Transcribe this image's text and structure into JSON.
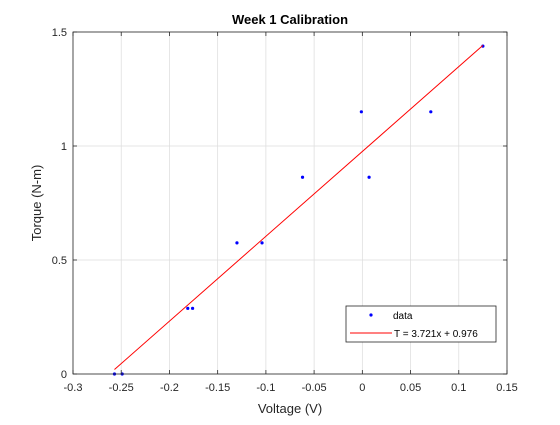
{
  "chart_data": {
    "type": "scatter",
    "title": "Week 1 Calibration",
    "xlabel": "Voltage (V)",
    "ylabel": "Torque (N-m)",
    "xlim": [
      -0.3,
      0.15
    ],
    "ylim": [
      0,
      1.5
    ],
    "grid": true,
    "xticks": [
      -0.3,
      -0.25,
      -0.2,
      -0.15,
      -0.1,
      -0.05,
      0,
      0.05,
      0.1,
      0.15
    ],
    "xtick_labels": [
      "-0.3",
      "-0.25",
      "-0.2",
      "-0.15",
      "-0.1",
      "-0.05",
      "0",
      "0.05",
      "0.1",
      "0.15"
    ],
    "yticks": [
      0,
      0.5,
      1,
      1.5
    ],
    "ytick_labels": [
      "0",
      "0.5",
      "1",
      "1.5"
    ],
    "series": [
      {
        "name": "data",
        "kind": "scatter",
        "color": "#0000ff",
        "x": [
          -0.257,
          -0.249,
          -0.181,
          -0.176,
          -0.13,
          -0.104,
          -0.062,
          -0.001,
          0.007,
          0.071,
          0.125
        ],
        "y": [
          0.0,
          0.0,
          0.288,
          0.288,
          0.575,
          0.575,
          0.863,
          1.15,
          0.863,
          1.15,
          1.438
        ]
      },
      {
        "name": "T = 3.721x + 0.976",
        "kind": "line",
        "color": "#ff0000",
        "slope": 3.721,
        "intercept": 0.976,
        "x_range": [
          -0.257,
          0.125
        ]
      }
    ],
    "legend": {
      "position": "bottom-right"
    }
  }
}
